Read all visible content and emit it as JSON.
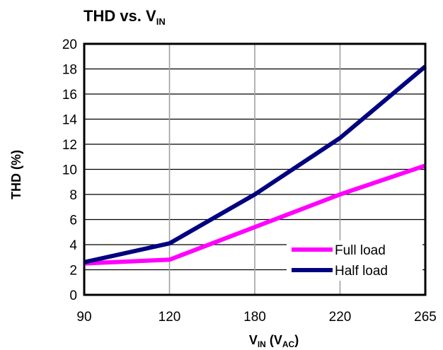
{
  "chart_data": {
    "type": "line",
    "title": {
      "main": "THD vs. V",
      "sub": "IN"
    },
    "xlabel": {
      "v": "V",
      "v_sub": "IN",
      "open": " (V",
      "ac_sub": "AC",
      "close": ")"
    },
    "ylabel": "THD (%)",
    "categories": [
      "90",
      "120",
      "180",
      "220",
      "265"
    ],
    "ylim": [
      0,
      20
    ],
    "yticks": [
      0,
      2,
      4,
      6,
      8,
      10,
      12,
      14,
      16,
      18,
      20
    ],
    "series": [
      {
        "name": "Full load",
        "color": "#ff00ff",
        "values": [
          2.5,
          2.8,
          5.4,
          8.0,
          10.3
        ]
      },
      {
        "name": "Half load",
        "color": "#000080",
        "values": [
          2.6,
          4.1,
          8.0,
          12.5,
          18.2
        ]
      }
    ],
    "grid": {
      "vertical": true,
      "horizontal": true
    },
    "legend_position": "bottom-right"
  }
}
